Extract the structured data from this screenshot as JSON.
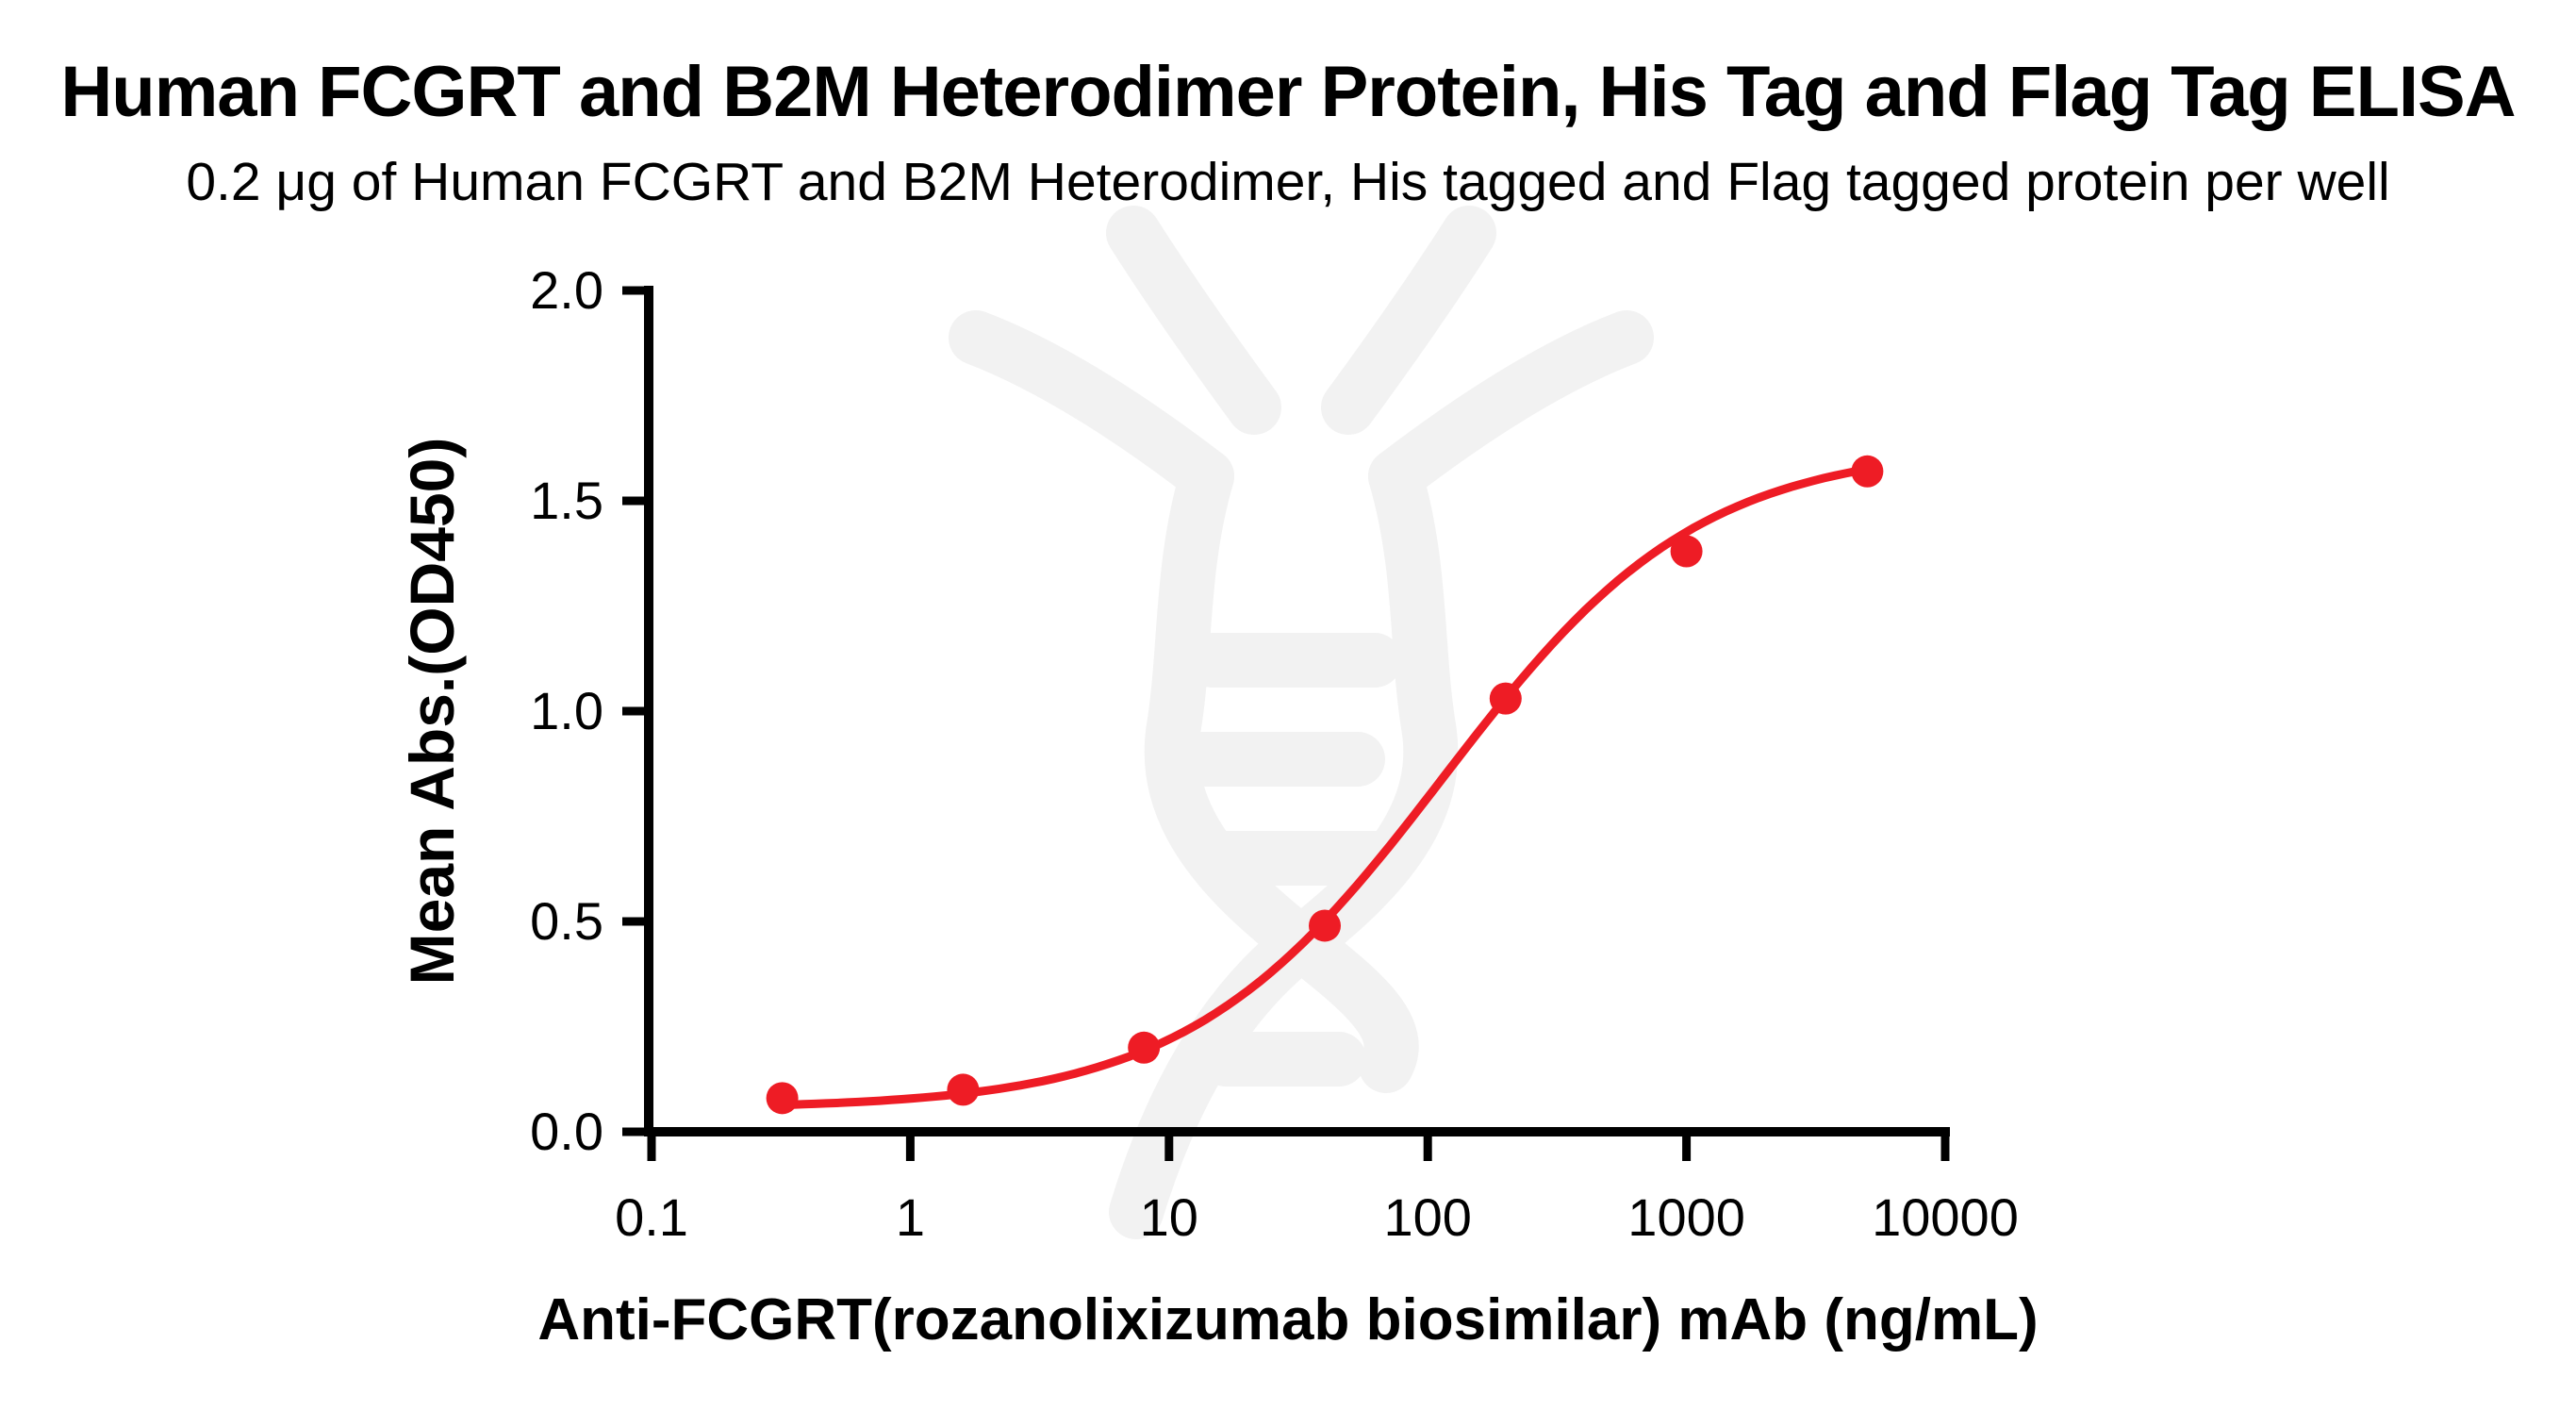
{
  "title": "Human FCGRT and B2M Heterodimer Protein, His Tag and Flag Tag ELISA",
  "subtitle": "0.2 μg of Human FCGRT and B2M Heterodimer, His tagged and Flag tagged protein per well",
  "chart_data": {
    "type": "scatter",
    "title": "Human FCGRT and B2M Heterodimer Protein, His Tag and Flag Tag ELISA",
    "subtitle": "0.2 μg of Human FCGRT and B2M Heterodimer, His tagged and Flag tagged protein per well",
    "xlabel": "Anti-FCGRT(rozanolixizumab biosimilar) mAb (ng/mL)",
    "ylabel": "Mean Abs.(OD450)",
    "xscale": "log",
    "xlim": [
      0.1,
      10000
    ],
    "ylim": [
      0.0,
      2.0
    ],
    "x_ticks": [
      "0.1",
      "1",
      "10",
      "100",
      "1000",
      "10000"
    ],
    "y_ticks": [
      "0.0",
      "0.5",
      "1.0",
      "1.5",
      "2.0"
    ],
    "grid": false,
    "legend": "none",
    "series": [
      {
        "name": "Anti-FCGRT(rozanolixizumab biosimilar) mAb",
        "marker": "circle",
        "color": "#EE1C25",
        "x": [
          0.32,
          1.6,
          8,
          40,
          200,
          1000,
          5000
        ],
        "y": [
          0.08,
          0.1,
          0.2,
          0.49,
          1.03,
          1.38,
          1.57
        ],
        "fit": {
          "model": "4PL",
          "bottom": 0.055,
          "top": 1.63,
          "logEC50": 2.06,
          "hill": 0.88
        }
      }
    ]
  },
  "watermark": {
    "icon": "antibody-dna-logo",
    "color": "#F2F2F2"
  }
}
